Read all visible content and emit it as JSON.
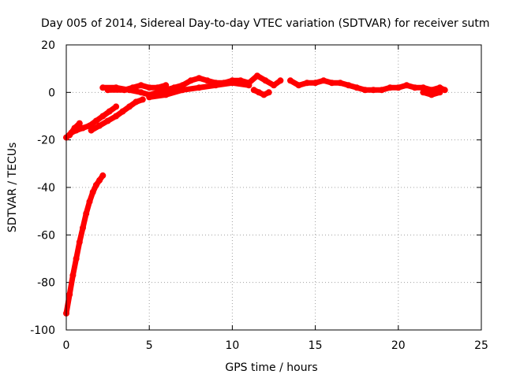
{
  "chart_data": {
    "type": "scatter",
    "title": "Day 005 of 2014, Sidereal Day-to-day VTEC variation (SDTVAR) for receiver sutm",
    "xlabel": "GPS time / hours",
    "ylabel": "SDTVAR / TECUs",
    "xlim": [
      0,
      25
    ],
    "ylim": [
      -100,
      20
    ],
    "xticks": [
      0,
      5,
      10,
      15,
      20,
      25
    ],
    "yticks": [
      -100,
      -80,
      -60,
      -40,
      -20,
      0,
      20
    ],
    "grid": true,
    "legend": "none",
    "series": [
      {
        "color": "#ff0000",
        "x": [
          0.0,
          0.2,
          0.4,
          0.6,
          0.8,
          1.0,
          1.2,
          1.4,
          1.6,
          1.8,
          2.0,
          2.2
        ],
        "y": [
          -93,
          -85,
          -77,
          -70,
          -63,
          -57,
          -51,
          -46,
          -42,
          -39,
          -37,
          -35
        ]
      },
      {
        "color": "#ff0000",
        "x": [
          0.0,
          0.3,
          0.6,
          1.0,
          1.4,
          1.8,
          2.2,
          2.6,
          3.0
        ],
        "y": [
          -19,
          -17,
          -16,
          -15,
          -14,
          -12,
          -10,
          -8,
          -6
        ]
      },
      {
        "color": "#ff0000",
        "x": [
          0.2,
          0.5,
          0.8
        ],
        "y": [
          -18,
          -15,
          -13
        ]
      },
      {
        "color": "#ff0000",
        "x": [
          1.5,
          2.0,
          2.5,
          3.0,
          3.4,
          3.8,
          4.2,
          4.6
        ],
        "y": [
          -16,
          -14,
          -12,
          -10,
          -8,
          -6,
          -4,
          -3
        ]
      },
      {
        "color": "#ff0000",
        "x": [
          2.2,
          3.0,
          3.8,
          4.5,
          5.0,
          5.5,
          6.0,
          6.5,
          7.0,
          7.5,
          8.0,
          8.5,
          9.0,
          9.5,
          10.0,
          10.5,
          11.0,
          11.5,
          12.0,
          12.5,
          12.9
        ],
        "y": [
          2,
          2,
          1,
          0,
          -1,
          0,
          1,
          2,
          3,
          5,
          6,
          5,
          4,
          4,
          5,
          5,
          4,
          7,
          5,
          3,
          5
        ]
      },
      {
        "color": "#ff0000",
        "x": [
          2.5,
          3.5,
          4.0,
          4.5,
          5.0,
          5.5,
          6.0
        ],
        "y": [
          1,
          1,
          2,
          3,
          2,
          2,
          3
        ]
      },
      {
        "color": "#ff0000",
        "x": [
          5.0,
          6.0,
          7.0,
          8.0,
          9.0,
          10.0,
          11.0
        ],
        "y": [
          -2,
          -1,
          1,
          2,
          3,
          4,
          3
        ]
      },
      {
        "color": "#ff0000",
        "x": [
          11.3,
          11.6,
          11.9,
          12.2
        ],
        "y": [
          1,
          0,
          -1,
          0
        ]
      },
      {
        "color": "#ff0000",
        "x": [
          13.5,
          14.0,
          14.5,
          15.0,
          15.5,
          16.0,
          16.5,
          17.0,
          17.5,
          18.0,
          18.5,
          19.0,
          19.5,
          20.0,
          20.5,
          21.0,
          21.5,
          22.0,
          22.5,
          22.8
        ],
        "y": [
          5,
          3,
          4,
          4,
          5,
          4,
          4,
          3,
          2,
          1,
          1,
          1,
          2,
          2,
          3,
          2,
          2,
          1,
          2,
          1
        ]
      },
      {
        "color": "#ff0000",
        "x": [
          21.5,
          22.0,
          22.5
        ],
        "y": [
          0,
          -1,
          0
        ]
      }
    ]
  }
}
